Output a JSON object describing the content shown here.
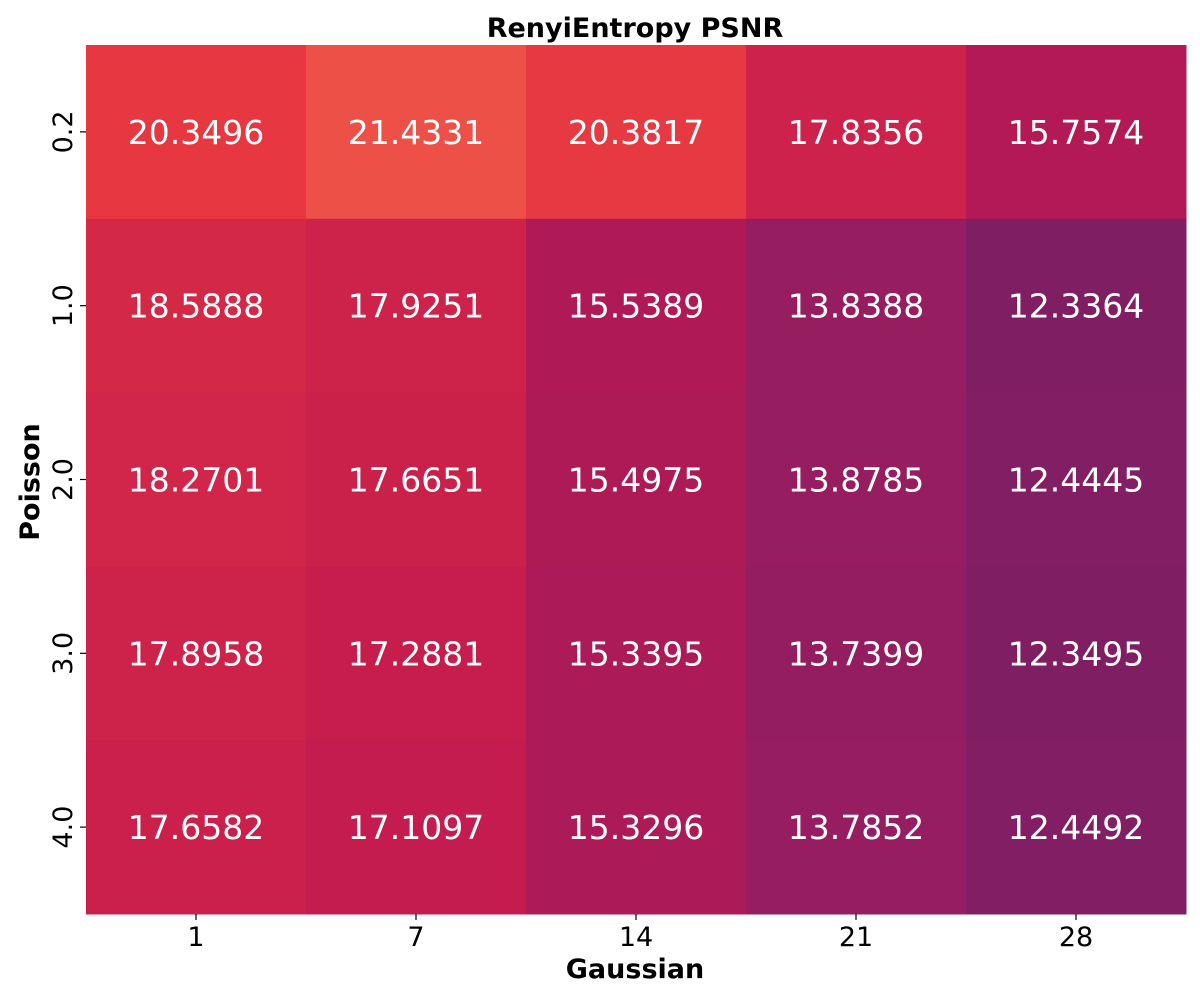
{
  "chart_data": {
    "type": "heatmap",
    "title": "RenyiEntropy PSNR",
    "xlabel": "Gaussian",
    "ylabel": "Poisson",
    "x": [
      "1",
      "7",
      "14",
      "21",
      "28"
    ],
    "y": [
      "0.2",
      "1.0",
      "2.0",
      "3.0",
      "4.0"
    ],
    "values": [
      [
        20.3496,
        21.4331,
        20.3817,
        17.8356,
        15.7574
      ],
      [
        18.5888,
        17.9251,
        15.5389,
        13.8388,
        12.3364
      ],
      [
        18.2701,
        17.6651,
        15.4975,
        13.8785,
        12.4445
      ],
      [
        17.8958,
        17.2881,
        15.3395,
        13.7399,
        12.3495
      ],
      [
        17.6582,
        17.1097,
        15.3296,
        13.7852,
        12.4492
      ]
    ],
    "value_labels": [
      [
        "20.3496",
        "21.4331",
        "20.3817",
        "17.8356",
        "15.7574"
      ],
      [
        "18.5888",
        "17.9251",
        "15.5389",
        "13.8388",
        "12.3364"
      ],
      [
        "18.2701",
        "17.6651",
        "15.4975",
        "13.8785",
        "12.4445"
      ],
      [
        "17.8958",
        "17.2881",
        "15.3395",
        "13.7399",
        "12.3495"
      ],
      [
        "17.6582",
        "17.1097",
        "15.3296",
        "13.7852",
        "12.4492"
      ]
    ],
    "colorbar": false,
    "colormap": "rocket"
  }
}
